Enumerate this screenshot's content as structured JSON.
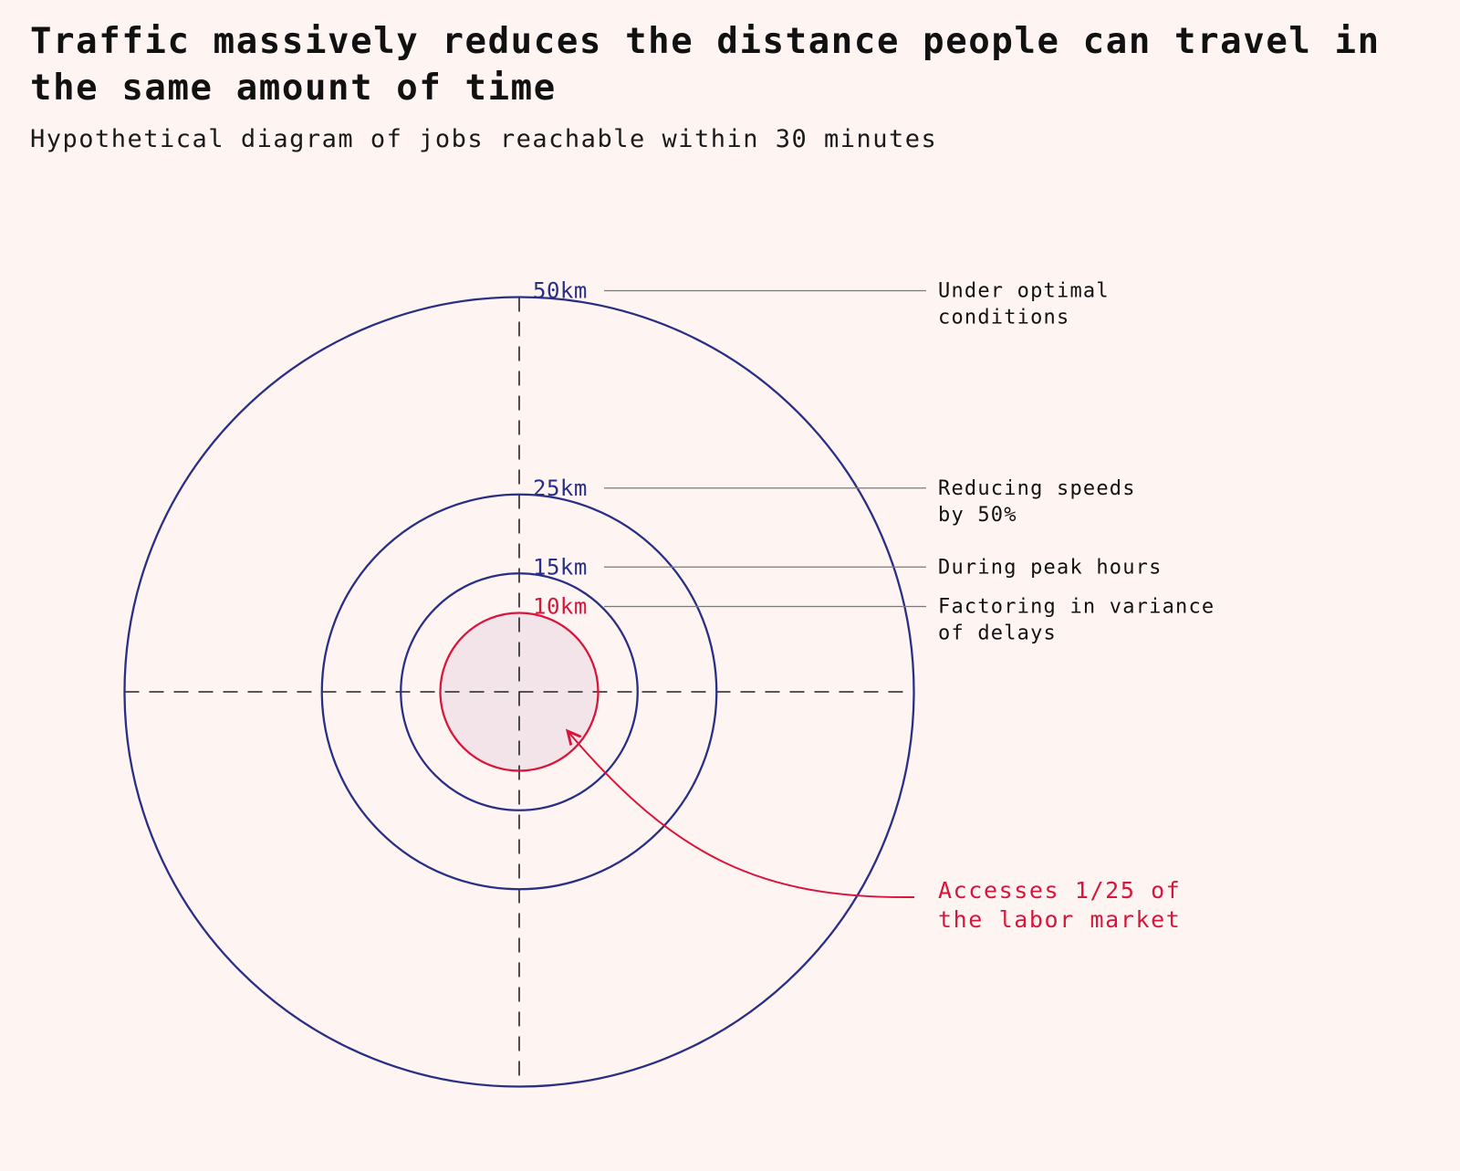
{
  "title": "Traffic massively reduces the distance people can travel in the same amount of time",
  "subtitle": "Hypothetical diagram of jobs reachable within 30 minutes",
  "colors": {
    "background": "#fef4f2",
    "ring": "#2a2f86",
    "highlight": "#d8163c",
    "highlight_fill": "#f2e4e8",
    "leader_line": "#7a7a7a",
    "axis": "#222222",
    "text": "#121212"
  },
  "rings": [
    {
      "radius_km": 50,
      "label": "50km",
      "annotation": [
        "Under optimal",
        "conditions"
      ],
      "highlight": false
    },
    {
      "radius_km": 25,
      "label": "25km",
      "annotation": [
        "Reducing speeds",
        "by 50%"
      ],
      "highlight": false
    },
    {
      "radius_km": 15,
      "label": "15km",
      "annotation": [
        "During peak hours"
      ],
      "highlight": false
    },
    {
      "radius_km": 10,
      "label": "10km",
      "annotation": [
        "Factoring in variance",
        "of delays"
      ],
      "highlight": true
    }
  ],
  "callout": {
    "lines": [
      "Accesses 1/25 of",
      "the labor market"
    ]
  }
}
